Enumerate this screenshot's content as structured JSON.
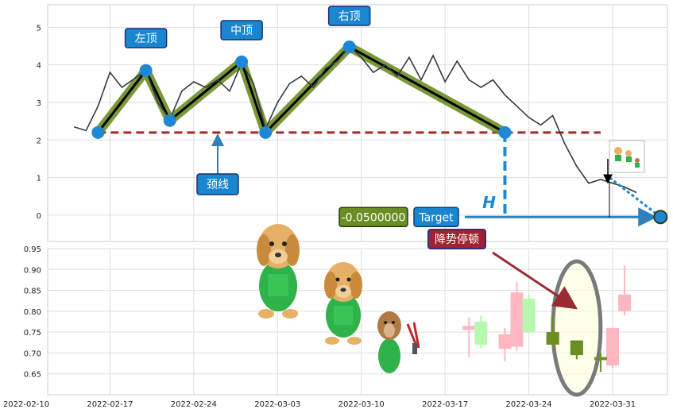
{
  "chart_data": [
    {
      "type": "line",
      "title": "",
      "pattern": "head-and-shoulders top",
      "ylim": [
        -0.7,
        5.6
      ],
      "yticks": [
        "0",
        "1",
        "2",
        "3",
        "4",
        "5"
      ],
      "grid": true,
      "price_series": {
        "color": "#333a44",
        "points": [
          [
            "2022-02-14",
            2.35
          ],
          [
            "2022-02-15",
            2.25
          ],
          [
            "2022-02-16",
            2.9
          ],
          [
            "2022-02-17",
            3.8
          ],
          [
            "2022-02-18",
            3.4
          ],
          [
            "2022-02-20",
            3.85
          ],
          [
            "2022-02-21",
            3.0
          ],
          [
            "2022-02-22",
            2.55
          ],
          [
            "2022-02-23",
            3.3
          ],
          [
            "2022-02-24",
            3.55
          ],
          [
            "2022-02-25",
            3.4
          ],
          [
            "2022-02-26",
            3.6
          ],
          [
            "2022-02-27",
            3.3
          ],
          [
            "2022-02-28",
            4.05
          ],
          [
            "2022-03-01",
            3.5
          ],
          [
            "2022-03-02",
            2.3
          ],
          [
            "2022-03-03",
            3.0
          ],
          [
            "2022-03-04",
            3.5
          ],
          [
            "2022-03-05",
            3.7
          ],
          [
            "2022-03-06",
            3.4
          ],
          [
            "2022-03-07",
            3.9
          ],
          [
            "2022-03-08",
            4.1
          ],
          [
            "2022-03-09",
            4.5
          ],
          [
            "2022-03-10",
            4.2
          ],
          [
            "2022-03-11",
            3.8
          ],
          [
            "2022-03-12",
            4.0
          ],
          [
            "2022-03-13",
            3.7
          ],
          [
            "2022-03-14",
            4.2
          ],
          [
            "2022-03-15",
            3.6
          ],
          [
            "2022-03-16",
            4.25
          ],
          [
            "2022-03-17",
            3.55
          ],
          [
            "2022-03-18",
            4.1
          ],
          [
            "2022-03-19",
            3.6
          ],
          [
            "2022-03-20",
            3.4
          ],
          [
            "2022-03-21",
            3.6
          ],
          [
            "2022-03-22",
            3.2
          ],
          [
            "2022-03-23",
            2.9
          ],
          [
            "2022-03-24",
            2.6
          ],
          [
            "2022-03-25",
            2.4
          ],
          [
            "2022-03-26",
            2.65
          ],
          [
            "2022-03-27",
            1.9
          ],
          [
            "2022-03-28",
            1.3
          ],
          [
            "2022-03-29",
            0.85
          ],
          [
            "2022-03-30",
            0.95
          ],
          [
            "2022-03-31",
            0.85
          ],
          [
            "2022-04-01",
            0.75
          ],
          [
            "2022-04-02",
            0.6
          ]
        ]
      },
      "pattern_points": [
        {
          "date": "2022-02-16",
          "value": 2.2
        },
        {
          "date": "2022-02-20",
          "value": 3.85
        },
        {
          "date": "2022-02-22",
          "value": 2.52
        },
        {
          "date": "2022-02-28",
          "value": 4.08
        },
        {
          "date": "2022-03-02",
          "value": 2.2
        },
        {
          "date": "2022-03-09",
          "value": 4.48
        },
        {
          "date": "2022-03-22",
          "value": 2.2
        }
      ],
      "neckline": {
        "value": 2.2,
        "from": "2022-02-16",
        "to": "2022-03-30"
      },
      "target_point": {
        "date": "2022-04-04",
        "value": -0.05
      },
      "labels": {
        "left_shoulder": "左顶",
        "head": "中顶",
        "right_shoulder": "右顶",
        "neckline": "颈线",
        "height": "H",
        "target": "Target",
        "target_value": "-0.0500000",
        "trend_note": "降势停顿"
      },
      "colors": {
        "pattern_fill": "#6b8e23",
        "node": "#1f88d4",
        "neckline": "#a52a2a",
        "label_box": "#1a86d0",
        "target_box": "#6b8e23",
        "note_box": "#a0232f"
      }
    },
    {
      "type": "candlestick",
      "ylim": [
        0.6,
        0.95
      ],
      "yticks": [
        "0.65",
        "0.70",
        "0.75",
        "0.80",
        "0.85",
        "0.90",
        "0.95"
      ],
      "xticks": [
        "2022-02-10",
        "2022-02-17",
        "2022-02-24",
        "2022-03-03",
        "2022-03-10",
        "2022-03-17",
        "2022-03-24",
        "2022-03-31"
      ],
      "grid": true,
      "candles": [
        {
          "date": "2022-03-19",
          "open": 0.765,
          "close": 0.755,
          "high": 0.785,
          "low": 0.69,
          "color": "#ffb6c1"
        },
        {
          "date": "2022-03-20",
          "open": 0.72,
          "close": 0.775,
          "high": 0.79,
          "low": 0.71,
          "color": "#b8f7b0"
        },
        {
          "date": "2022-03-22",
          "open": 0.71,
          "close": 0.745,
          "high": 0.76,
          "low": 0.68,
          "color": "#ffb6c1"
        },
        {
          "date": "2022-03-23",
          "open": 0.715,
          "close": 0.845,
          "high": 0.87,
          "low": 0.705,
          "color": "#ffb6c1"
        },
        {
          "date": "2022-03-24",
          "open": 0.75,
          "close": 0.83,
          "high": 0.84,
          "low": 0.745,
          "color": "#b8f7b0"
        },
        {
          "date": "2022-03-26",
          "open": 0.75,
          "close": 0.72,
          "high": 0.795,
          "low": 0.71,
          "color": "#6b8e23"
        },
        {
          "date": "2022-03-28",
          "open": 0.73,
          "close": 0.695,
          "high": 0.73,
          "low": 0.685,
          "color": "#6b8e23"
        },
        {
          "date": "2022-03-30",
          "open": 0.69,
          "close": 0.683,
          "high": 0.7,
          "low": 0.655,
          "color": "#6b8e23"
        },
        {
          "date": "2022-03-31",
          "open": 0.67,
          "close": 0.76,
          "high": 0.76,
          "low": 0.665,
          "color": "#ffb6c1"
        },
        {
          "date": "2022-04-01",
          "open": 0.8,
          "close": 0.84,
          "high": 0.91,
          "low": 0.79,
          "color": "#ffb6c1"
        }
      ],
      "highlight_ellipse": {
        "date": "2022-03-28",
        "color": "#7a7a7a"
      }
    }
  ]
}
